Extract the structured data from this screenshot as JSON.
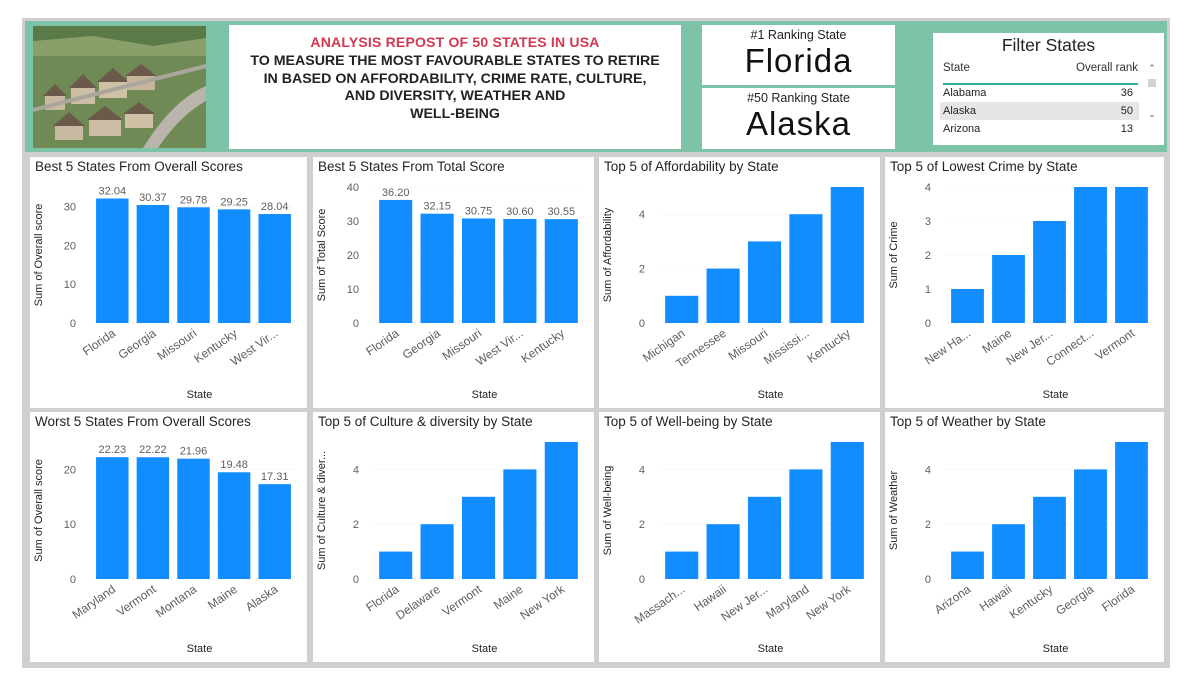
{
  "header": {
    "title_red": "ANALYSIS REPOST OF 50 STATES IN USA",
    "title_main": "TO MEASURE THE MOST FAVOURABLE STATES TO RETIRE\nIN  BASED ON AFFORDABILITY, CRIME RATE, CULTURE,\nAND DIVERSITY, WEATHER AND\nWELL-BEING",
    "rank1_label": "#1 Ranking State",
    "rank1_state": "Florida",
    "rank50_label": "#50 Ranking State",
    "rank50_state": "Alaska"
  },
  "filter": {
    "title": "Filter States",
    "col_state": "State",
    "col_rank": "Overall rank",
    "rows": [
      {
        "state": "Alabama",
        "rank": "36"
      },
      {
        "state": "Alaska",
        "rank": "50"
      },
      {
        "state": "Arizona",
        "rank": "13"
      }
    ],
    "scroll_up_icon": "chevron-up-icon",
    "scroll_down_icon": "chevron-down-icon"
  },
  "colors": {
    "bar": "#118DFF",
    "header_bg": "#7cc3a8",
    "title_red": "#d4384f"
  },
  "chart_data": [
    {
      "type": "bar",
      "title": "Best 5 States From Overall Scores",
      "xlabel": "State",
      "ylabel": "Sum of Overall score",
      "categories": [
        "Florida",
        "Georgia",
        "Missouri",
        "Kentucky",
        "West Vir..."
      ],
      "values": [
        32.04,
        30.37,
        29.78,
        29.25,
        28.04
      ],
      "data_labels": [
        "32.04",
        "30.37",
        "29.78",
        "29.25",
        "28.04"
      ],
      "ylim": [
        0,
        35
      ],
      "yticks": [
        0,
        10,
        20,
        30
      ]
    },
    {
      "type": "bar",
      "title": "Best 5 States From Total Score",
      "xlabel": "State",
      "ylabel": "Sum of Total Score",
      "categories": [
        "Florida",
        "Georgia",
        "Missouri",
        "West Vir...",
        "Kentucky"
      ],
      "values": [
        36.2,
        32.15,
        30.75,
        30.6,
        30.55
      ],
      "data_labels": [
        "36.20",
        "32.15",
        "30.75",
        "30.60",
        "30.55"
      ],
      "ylim": [
        0,
        40
      ],
      "yticks": [
        0,
        10,
        20,
        30,
        40
      ]
    },
    {
      "type": "bar",
      "title": "Top 5 of Affordability by State",
      "xlabel": "State",
      "ylabel": "Sum of Affordability",
      "categories": [
        "Michigan",
        "Tennessee",
        "Missouri",
        "Mississi...",
        "Kentucky"
      ],
      "values": [
        1,
        2,
        3,
        4,
        5
      ],
      "ylim": [
        0,
        5
      ],
      "yticks": [
        0,
        2,
        4
      ]
    },
    {
      "type": "bar",
      "title": "Top 5 of Lowest Crime by State",
      "xlabel": "State",
      "ylabel": "Sum of Crime",
      "categories": [
        "New Ha...",
        "Maine",
        "New Jer...",
        "Connect...",
        "Vermont"
      ],
      "values": [
        1,
        2,
        3,
        4,
        4
      ],
      "ylim": [
        0,
        4
      ],
      "yticks": [
        0,
        1,
        2,
        3,
        4
      ]
    },
    {
      "type": "bar",
      "title": "Worst 5 States From Overall Scores",
      "xlabel": "State",
      "ylabel": "Sum of Overall score",
      "categories": [
        "Maryland",
        "Vermont",
        "Montana",
        "Maine",
        "Alaska"
      ],
      "values": [
        22.23,
        22.22,
        21.96,
        19.48,
        17.31
      ],
      "data_labels": [
        "22.23",
        "22.22",
        "21.96",
        "19.48",
        "17.31"
      ],
      "ylim": [
        0,
        25
      ],
      "yticks": [
        0,
        10,
        20
      ]
    },
    {
      "type": "bar",
      "title": "Top 5 of Culture & diversity by State",
      "xlabel": "State",
      "ylabel": "Sum of Culture & diver...",
      "categories": [
        "Florida",
        "Delaware",
        "Vermont",
        "Maine",
        "New York"
      ],
      "values": [
        1,
        2,
        3,
        4,
        5
      ],
      "ylim": [
        0,
        5
      ],
      "yticks": [
        0,
        2,
        4
      ]
    },
    {
      "type": "bar",
      "title": "Top 5 of Well-being by State",
      "xlabel": "State",
      "ylabel": "Sum of Well-being",
      "categories": [
        "Massach...",
        "Hawaii",
        "New Jer...",
        "Maryland",
        "New York"
      ],
      "values": [
        1,
        2,
        3,
        4,
        5
      ],
      "ylim": [
        0,
        5
      ],
      "yticks": [
        0,
        2,
        4
      ]
    },
    {
      "type": "bar",
      "title": "Top 5 of Weather by State",
      "xlabel": "State",
      "ylabel": "Sum of Weather",
      "categories": [
        "Arizona",
        "Hawaii",
        "Kentucky",
        "Georgia",
        "Florida"
      ],
      "values": [
        1,
        2,
        3,
        4,
        5
      ],
      "ylim": [
        0,
        5
      ],
      "yticks": [
        0,
        2,
        4
      ]
    }
  ]
}
